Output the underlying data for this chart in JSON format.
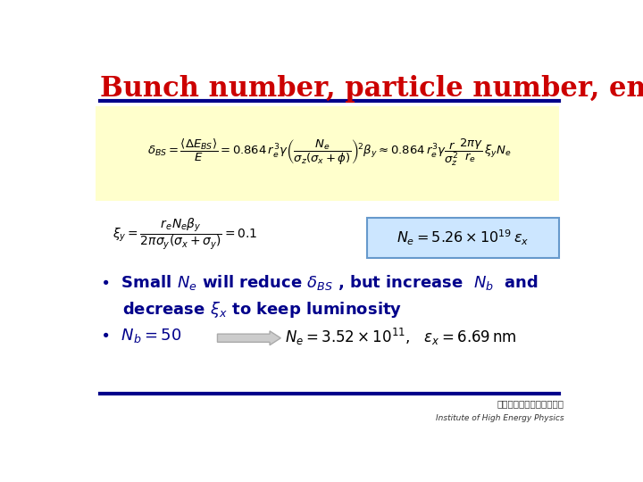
{
  "title": "Bunch number, particle number, emittance",
  "title_color": "#cc0000",
  "title_fontsize": 22,
  "bg_color": "#ffffff",
  "line_color": "#00008B",
  "yellow_box_color": "#ffffcc",
  "blue_box_color": "#cce6ff",
  "bullet_color": "#00008B",
  "formula_color": "#000000",
  "arrow_color": "#cccccc",
  "arrow_edge_color": "#aaaaaa"
}
